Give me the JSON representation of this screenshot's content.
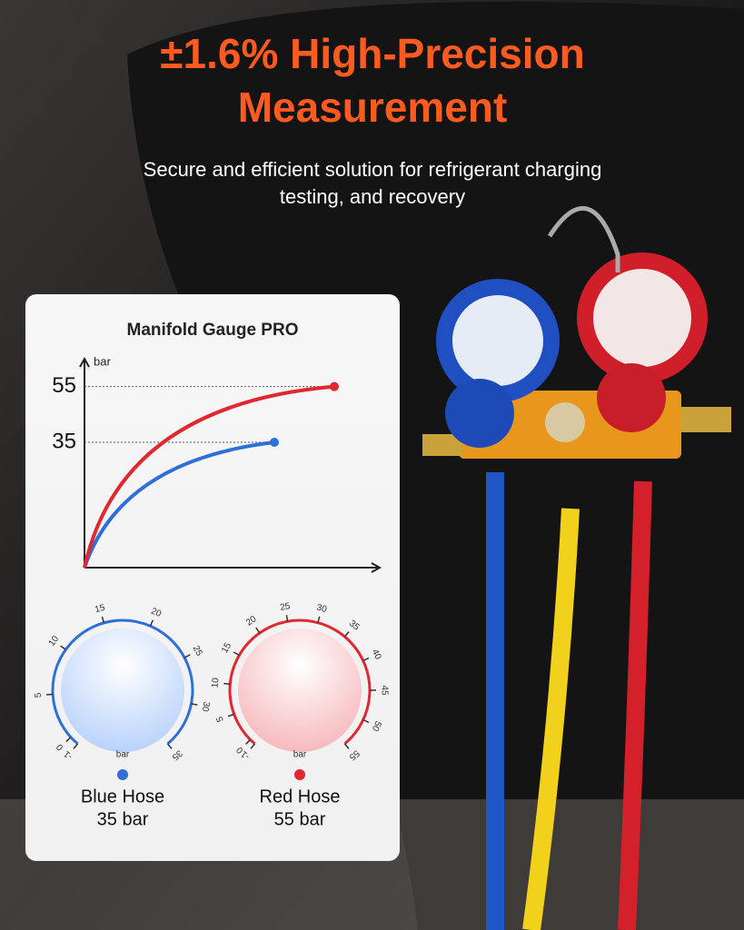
{
  "header": {
    "title_lines": [
      "±1.6% High-Precision",
      "Measurement"
    ],
    "subtitle_lines": [
      "Secure and efficient solution for refrigerant charging",
      "testing, and recovery"
    ]
  },
  "card": {
    "title": "Manifold Gauge PRO",
    "chart": {
      "y_label": "bar",
      "ylim": [
        -10,
        65
      ],
      "yticks": [
        35,
        55
      ],
      "series": [
        {
          "name": "Blue Hose",
          "color": "#2f6fd8",
          "value": 35
        },
        {
          "name": "Red Hose",
          "color": "#e0282e",
          "value": 55
        }
      ]
    },
    "gauges": [
      {
        "color": "#2f6fd8",
        "ticks": [
          -1,
          0,
          5,
          10,
          15,
          20,
          25,
          30,
          35
        ],
        "unit": "bar",
        "name": "Blue Hose",
        "reading": "35 bar"
      },
      {
        "color": "#e0282e",
        "ticks": [
          -1,
          0,
          5,
          10,
          15,
          20,
          25,
          30,
          35,
          40,
          45,
          50,
          55
        ],
        "unit": "bar",
        "name": "Red Hose",
        "reading": "55 bar"
      }
    ]
  }
}
